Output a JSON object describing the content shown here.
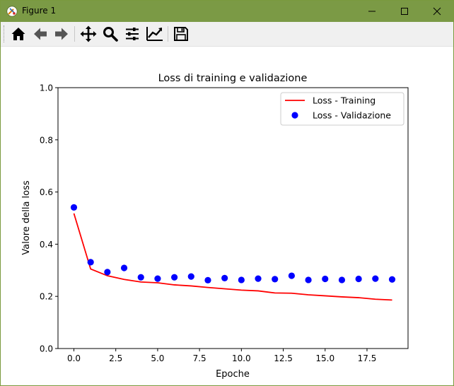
{
  "window": {
    "title": "Figure 1",
    "minimize_glyph": "—",
    "maximize_glyph": "☐",
    "close_glyph": "✕",
    "titlebar_color": "#7b9a45"
  },
  "toolbar": {
    "items": [
      {
        "name": "home-icon",
        "tooltip": "Home"
      },
      {
        "name": "back-icon",
        "tooltip": "Back"
      },
      {
        "name": "forward-icon",
        "tooltip": "Forward"
      },
      {
        "name": "pan-icon",
        "tooltip": "Pan"
      },
      {
        "name": "zoom-icon",
        "tooltip": "Zoom"
      },
      {
        "name": "subplots-icon",
        "tooltip": "Subplots"
      },
      {
        "name": "customize-icon",
        "tooltip": "Customize"
      },
      {
        "name": "save-icon",
        "tooltip": "Save"
      }
    ]
  },
  "chart_data": {
    "type": "line",
    "title": "Loss di training e validazione",
    "xlabel": "Epoche",
    "ylabel": "Valore della loss",
    "xlim": [
      -0.95,
      19.95
    ],
    "ylim": [
      0.0,
      1.0
    ],
    "xticks": [
      0.0,
      2.5,
      5.0,
      7.5,
      10.0,
      12.5,
      15.0,
      17.5
    ],
    "xtick_labels": [
      "0.0",
      "2.5",
      "5.0",
      "7.5",
      "10.0",
      "12.5",
      "15.0",
      "17.5"
    ],
    "yticks": [
      0.0,
      0.2,
      0.4,
      0.6,
      0.8,
      1.0
    ],
    "ytick_labels": [
      "0.0",
      "0.2",
      "0.4",
      "0.6",
      "0.8",
      "1.0"
    ],
    "grid": false,
    "legend_position": "top-right",
    "x": [
      0,
      1,
      2,
      3,
      4,
      5,
      6,
      7,
      8,
      9,
      10,
      11,
      12,
      13,
      14,
      15,
      16,
      17,
      18,
      19
    ],
    "series": [
      {
        "name": "Loss - Training",
        "style": "line",
        "color": "#ff0000",
        "values": [
          0.518,
          0.305,
          0.279,
          0.265,
          0.255,
          0.252,
          0.244,
          0.24,
          0.234,
          0.229,
          0.224,
          0.221,
          0.213,
          0.212,
          0.206,
          0.202,
          0.198,
          0.195,
          0.189,
          0.186
        ]
      },
      {
        "name": "Loss - Validazione",
        "style": "markers",
        "color": "#0000ff",
        "values": [
          0.541,
          0.331,
          0.293,
          0.309,
          0.273,
          0.268,
          0.273,
          0.276,
          0.262,
          0.27,
          0.263,
          0.268,
          0.266,
          0.279,
          0.263,
          0.267,
          0.263,
          0.267,
          0.268,
          0.265
        ]
      }
    ]
  }
}
